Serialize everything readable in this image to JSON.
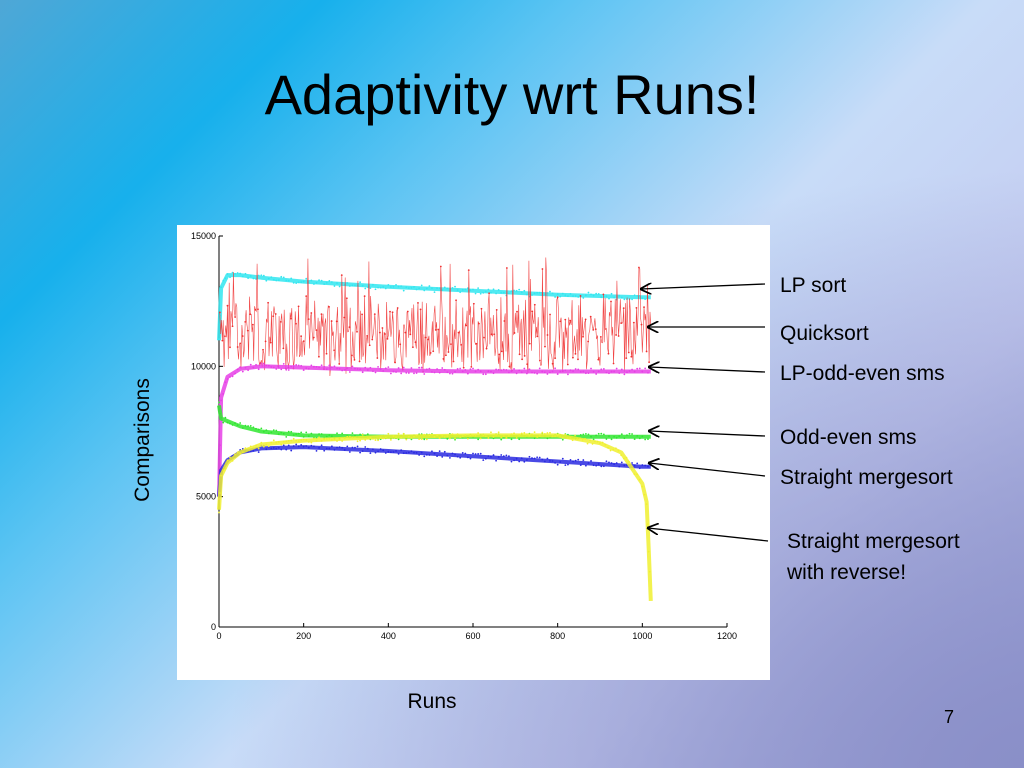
{
  "slide": {
    "title": "Adaptivity wrt Runs!",
    "page_number": "7"
  },
  "annotations": [
    {
      "id": "lp-sort",
      "text": "LP sort"
    },
    {
      "id": "quicksort",
      "text": "Quicksort"
    },
    {
      "id": "lp-odd-even-sms",
      "text": "LP-odd-even sms"
    },
    {
      "id": "odd-even-sms",
      "text": "Odd-even sms"
    },
    {
      "id": "straight-mergesort",
      "text": "Straight mergesort"
    },
    {
      "id": "straight-mergesort-reverse",
      "text": "Straight mergesort\nwith reverse!"
    }
  ],
  "chart_data": {
    "type": "line",
    "title": "",
    "xlabel": "Runs",
    "ylabel": "Comparisons",
    "xlim": [
      0,
      1200
    ],
    "ylim": [
      0,
      15000
    ],
    "x_ticks": [
      "0",
      "200",
      "400",
      "600",
      "800",
      "1000",
      "1200"
    ],
    "y_ticks": [
      "0",
      "5000",
      "10000",
      "15000"
    ],
    "grid": false,
    "legend": "none",
    "series": [
      {
        "name": "LP sort",
        "color": "#33e6f0",
        "x": [
          0,
          5,
          20,
          50,
          100,
          200,
          400,
          600,
          800,
          1000,
          1020
        ],
        "y": [
          11000,
          13000,
          13500,
          13500,
          13400,
          13250,
          13050,
          12900,
          12750,
          12650,
          12650
        ]
      },
      {
        "name": "Quicksort",
        "color": "#f03030",
        "x": [
          0,
          1020
        ],
        "y": [
          11200,
          11200
        ]
      },
      {
        "name": "LP-odd-even sms",
        "color": "#e640e6",
        "x": [
          0,
          5,
          20,
          50,
          100,
          200,
          400,
          600,
          800,
          1000,
          1020
        ],
        "y": [
          5000,
          8800,
          9600,
          9900,
          10000,
          9950,
          9850,
          9800,
          9800,
          9800,
          9800
        ]
      },
      {
        "name": "Odd-even sms",
        "color": "#30e630",
        "x": [
          0,
          5,
          20,
          50,
          100,
          200,
          400,
          600,
          800,
          1000,
          1020
        ],
        "y": [
          8500,
          8000,
          7900,
          7700,
          7500,
          7350,
          7300,
          7300,
          7300,
          7300,
          7300
        ]
      },
      {
        "name": "Straight mergesort",
        "color": "#2a2ae0",
        "x": [
          0,
          5,
          20,
          50,
          100,
          200,
          400,
          600,
          800,
          1000,
          1020
        ],
        "y": [
          5000,
          6000,
          6400,
          6700,
          6850,
          6900,
          6750,
          6550,
          6350,
          6150,
          6150
        ]
      },
      {
        "name": "Straight mergesort with reverse!",
        "color": "#f0f030",
        "x": [
          0,
          5,
          20,
          50,
          100,
          200,
          400,
          600,
          800,
          900,
          950,
          1000,
          1010,
          1015,
          1020
        ],
        "y": [
          4500,
          5800,
          6300,
          6700,
          7000,
          7150,
          7300,
          7350,
          7350,
          7050,
          6700,
          5500,
          4800,
          3000,
          1000
        ]
      }
    ],
    "noise": {
      "series": "Quicksort",
      "y_range": [
        10000,
        14200
      ]
    }
  }
}
